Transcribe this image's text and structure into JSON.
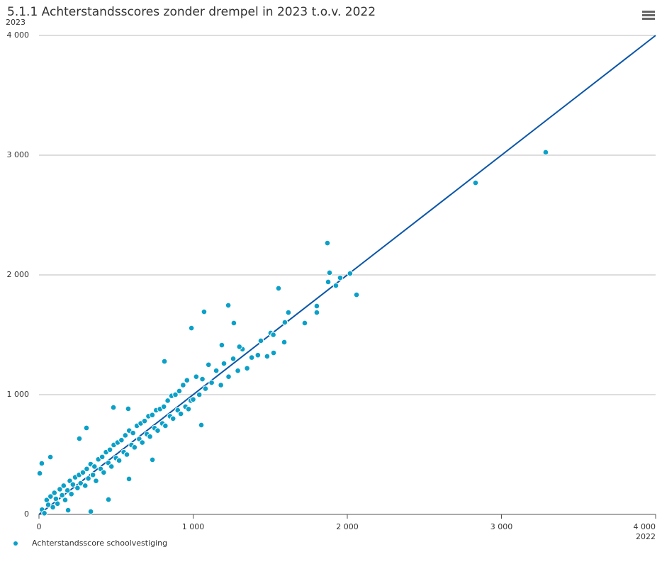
{
  "chart_data": {
    "type": "scatter",
    "title": "5.1.1 Achterstandsscores zonder drempel in 2023 t.o.v. 2022",
    "x_label": "2022",
    "y_label": "2023",
    "xlim": [
      0,
      4000
    ],
    "ylim": [
      0,
      4000
    ],
    "xticks": [
      0,
      {
        "value": 1000,
        "label": "1 000"
      },
      {
        "value": 2000,
        "label": "2 000"
      },
      {
        "value": 3000,
        "label": "3 000"
      },
      {
        "value": 4000,
        "label": "4 000"
      }
    ],
    "yticks": [
      0,
      {
        "value": 1000,
        "label": "1 000"
      },
      {
        "value": 2000,
        "label": "2 000"
      },
      {
        "value": 3000,
        "label": "3 000"
      },
      {
        "value": 4000,
        "label": "4 000"
      }
    ],
    "grid": true,
    "legend": "bottom-left",
    "reference_line": {
      "x": [
        0,
        4000
      ],
      "y": [
        0,
        4000
      ],
      "color": "#0a56a8"
    },
    "x": [
      3287,
      2832,
      1871,
      1885,
      1876,
      1926,
      1954,
      2018,
      2060,
      1554,
      1618,
      1595,
      1724,
      1802,
      1802,
      1591,
      1228,
      1071,
      1264,
      989,
      814,
      1503,
      1439,
      1522,
      1186,
      336,
      451,
      584,
      308,
      5,
      74,
      18,
      483,
      579,
      736,
      262,
      1053,
      189,
      20,
      35,
      50,
      60,
      75,
      90,
      100,
      110,
      120,
      135,
      150,
      160,
      170,
      185,
      200,
      210,
      220,
      235,
      250,
      260,
      270,
      285,
      300,
      310,
      320,
      335,
      350,
      360,
      370,
      385,
      400,
      410,
      420,
      435,
      450,
      460,
      470,
      485,
      500,
      510,
      520,
      535,
      550,
      560,
      570,
      585,
      600,
      610,
      620,
      635,
      650,
      660,
      670,
      685,
      700,
      710,
      720,
      735,
      750,
      760,
      770,
      785,
      800,
      810,
      820,
      835,
      850,
      860,
      870,
      885,
      900,
      910,
      920,
      935,
      950,
      960,
      970,
      985,
      1000,
      1020,
      1040,
      1060,
      1080,
      1100,
      1120,
      1150,
      1180,
      1200,
      1230,
      1260,
      1290,
      1320,
      1350,
      1380,
      1420,
      1480,
      1520,
      1300
    ],
    "series": [
      {
        "name": "Achterstandsscore schoolvestiging",
        "color": "#0aa0c8",
        "values": [
          3024,
          2769,
          2266,
          2018,
          1941,
          1911,
          1976,
          2012,
          1834,
          1888,
          1686,
          1604,
          1598,
          1740,
          1686,
          1438,
          1746,
          1692,
          1598,
          1556,
          1278,
          1515,
          1450,
          1349,
          1414,
          24,
          124,
          296,
          722,
          343,
          479,
          426,
          893,
          882,
          456,
          633,
          746,
          35,
          40,
          10,
          120,
          80,
          150,
          60,
          180,
          130,
          90,
          210,
          160,
          240,
          120,
          200,
          280,
          170,
          250,
          310,
          220,
          330,
          260,
          350,
          240,
          380,
          300,
          420,
          330,
          400,
          280,
          460,
          380,
          480,
          350,
          520,
          430,
          540,
          400,
          580,
          470,
          600,
          450,
          620,
          520,
          660,
          500,
          700,
          580,
          680,
          560,
          740,
          630,
          760,
          600,
          780,
          670,
          820,
          650,
          830,
          720,
          870,
          700,
          880,
          760,
          900,
          740,
          950,
          820,
          990,
          800,
          1000,
          870,
          1030,
          840,
          1080,
          900,
          1120,
          880,
          950,
          960,
          1150,
          1000,
          1130,
          1050,
          1250,
          1100,
          1200,
          1080,
          1260,
          1150,
          1300,
          1200,
          1380,
          1220,
          1310,
          1330,
          1320,
          1500,
          1400
        ]
      }
    ]
  }
}
